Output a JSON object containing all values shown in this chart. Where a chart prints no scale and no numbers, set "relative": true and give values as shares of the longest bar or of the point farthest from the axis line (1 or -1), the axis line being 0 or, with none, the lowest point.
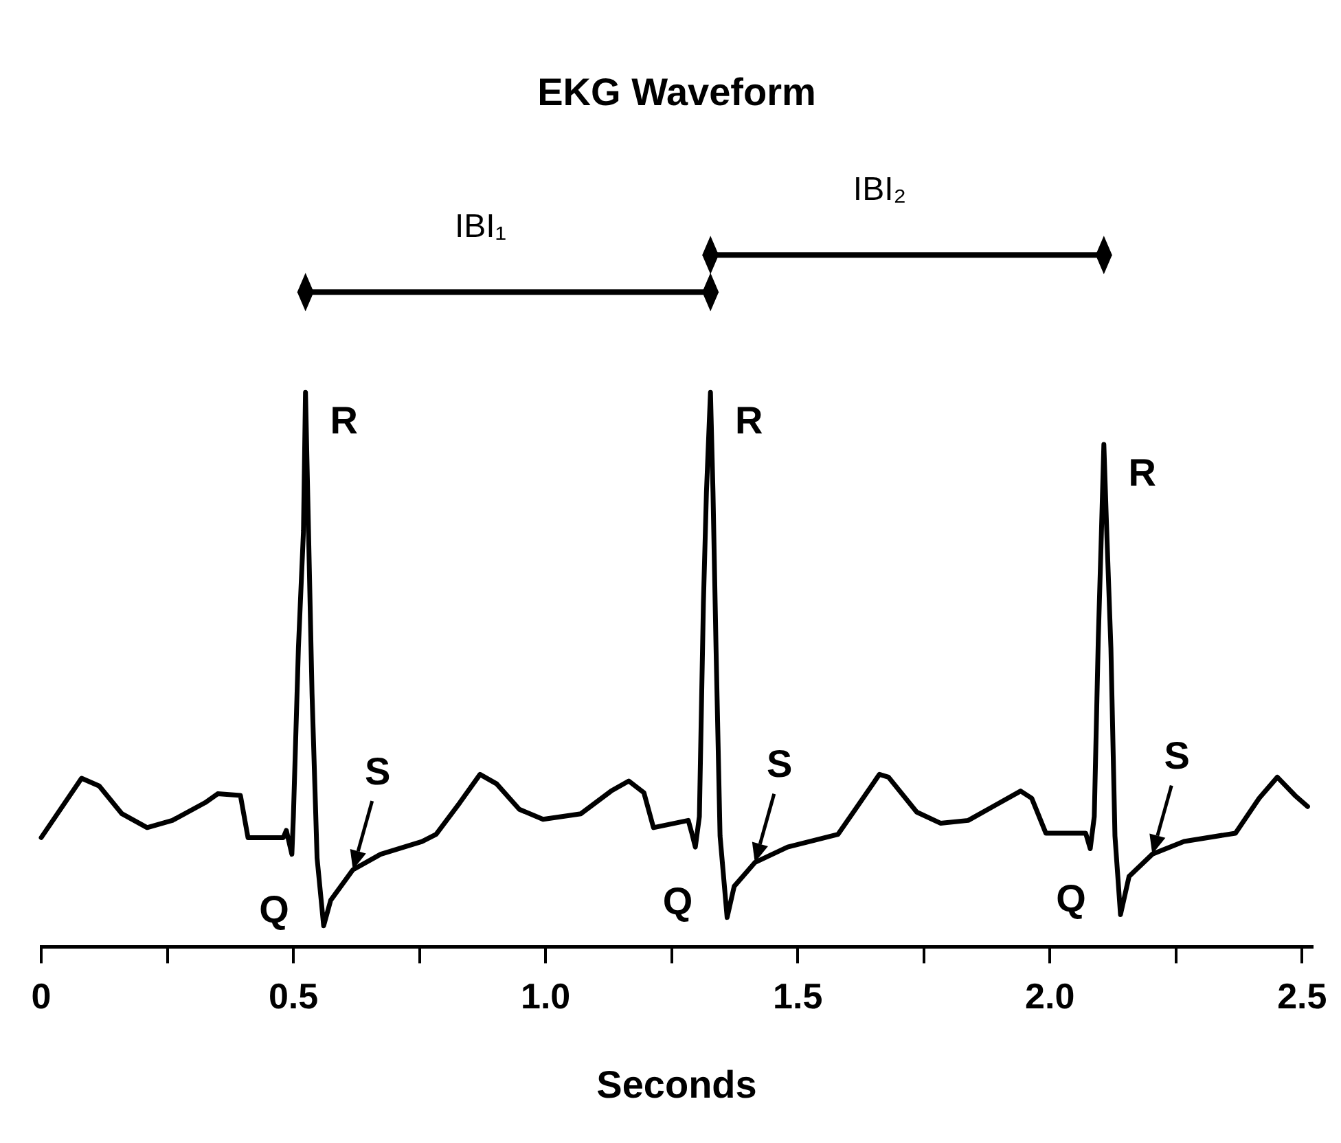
{
  "chart_data": {
    "type": "line",
    "title": "EKG Waveform",
    "xlabel": "Seconds",
    "relative": true,
    "grid": false,
    "legend": false,
    "marker": "none",
    "line_style": "solid",
    "xlim": [
      0,
      2.52
    ],
    "xticks": [
      0,
      {
        "value": 0.25,
        "label": null
      },
      0.5,
      {
        "value": 0.75,
        "label": null
      },
      {
        "value": 1,
        "label": "1.0"
      },
      {
        "value": 1.25,
        "label": null
      },
      1.5,
      {
        "value": 1.75,
        "label": null
      },
      {
        "value": 2,
        "label": "2.0"
      },
      {
        "value": 2.25,
        "label": null
      },
      2.5
    ],
    "series": [
      {
        "color": "#000000",
        "x": [
          0,
          0.08,
          0.115,
          0.16,
          0.21,
          0.26,
          0.325,
          0.35,
          0.395,
          0.41,
          0.48,
          0.486,
          0.497,
          0.5,
          0.51,
          0.52,
          0.524,
          0.53,
          0.537,
          0.547,
          0.56,
          0.574,
          0.618,
          0.673,
          0.755,
          0.783,
          0.83,
          0.87,
          0.903,
          0.948,
          0.995,
          1.07,
          1.13,
          1.165,
          1.195,
          1.214,
          1.283,
          1.29,
          1.297,
          1.305,
          1.313,
          1.319,
          1.327,
          1.332,
          1.338,
          1.346,
          1.36,
          1.374,
          1.415,
          1.48,
          1.58,
          1.618,
          1.662,
          1.68,
          1.736,
          1.783,
          1.838,
          1.893,
          1.942,
          1.964,
          1.992,
          2.071,
          2.08,
          2.088,
          2.096,
          2.102,
          2.107,
          2.113,
          2.121,
          2.129,
          2.14,
          2.157,
          2.203,
          2.266,
          2.368,
          2.415,
          2.451,
          2.486,
          2.511
        ],
        "values": [
          0.197,
          0.304,
          0.29,
          0.24,
          0.215,
          0.228,
          0.26,
          0.276,
          0.273,
          0.197,
          0.197,
          0.21,
          0.167,
          0.235,
          0.54,
          0.75,
          1,
          0.75,
          0.456,
          0.16,
          0.038,
          0.084,
          0.139,
          0.167,
          0.19,
          0.203,
          0.26,
          0.311,
          0.294,
          0.248,
          0.23,
          0.24,
          0.281,
          0.299,
          0.278,
          0.215,
          0.228,
          0.205,
          0.18,
          0.235,
          0.62,
          0.82,
          1,
          0.82,
          0.54,
          0.2,
          0.053,
          0.109,
          0.152,
          0.18,
          0.203,
          0.253,
          0.311,
          0.306,
          0.243,
          0.223,
          0.228,
          0.256,
          0.281,
          0.268,
          0.205,
          0.205,
          0.177,
          0.235,
          0.557,
          0.742,
          0.906,
          0.742,
          0.539,
          0.2,
          0.058,
          0.127,
          0.167,
          0.19,
          0.205,
          0.268,
          0.306,
          0.273,
          0.253
        ]
      }
    ],
    "annotations": [
      "IBI₁",
      "IBI₂",
      {
        "text": "R",
        "x": 0.524,
        "y": 1
      },
      {
        "text": "R",
        "x": 1.327,
        "y": 1
      },
      {
        "text": "R",
        "x": 2.107,
        "y": 0.906
      },
      {
        "text": "Q",
        "x": 0.56,
        "y": 0.038
      },
      {
        "text": "Q",
        "x": 1.36,
        "y": 0.053
      },
      {
        "text": "Q",
        "x": 2.14,
        "y": 0.058
      },
      {
        "text": "S",
        "x": 0.618,
        "y": 0.139
      },
      {
        "text": "S",
        "x": 1.415,
        "y": 0.152
      },
      {
        "text": "S",
        "x": 2.203,
        "y": 0.167
      }
    ]
  }
}
